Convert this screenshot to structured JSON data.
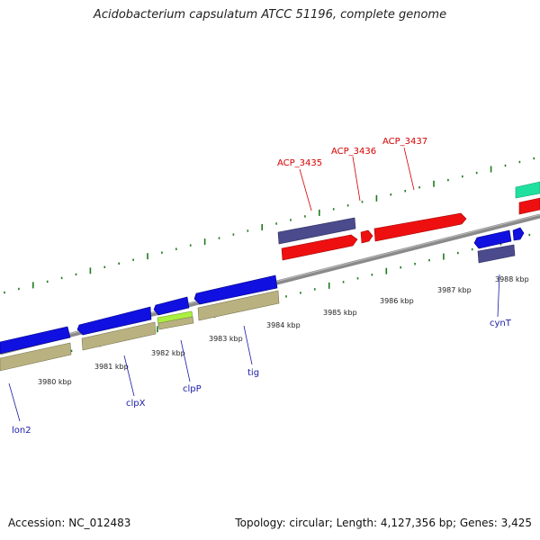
{
  "title": "Acidobacterium capsulatum ATCC 51196, complete genome",
  "accession": "Accession: NC_012483",
  "topology": "Topology: circular; Length: 4,127,356 bp; Genes: 3,425",
  "kbp_labels": [
    "3980 kbp",
    "3981 kbp",
    "3982 kbp",
    "3983 kbp",
    "3984 kbp",
    "3985 kbp",
    "3986 kbp",
    "3987 kbp",
    "3988 kbp"
  ],
  "gene_labels": {
    "top": [
      "ACP_3435",
      "ACP_3436",
      "ACP_3437"
    ],
    "bottom": [
      "lon2",
      "clpX",
      "clpP",
      "tig",
      "cynT"
    ]
  },
  "colors": {
    "backbone": "#808080",
    "cds_blue": "#1010e0",
    "cds_red": "#ee1010",
    "rna_purple": "#4a4a8c",
    "khaki": "#b9b280",
    "green": "#aaf040",
    "teal": "#20e0a0",
    "tick": "#1d7a1d"
  }
}
